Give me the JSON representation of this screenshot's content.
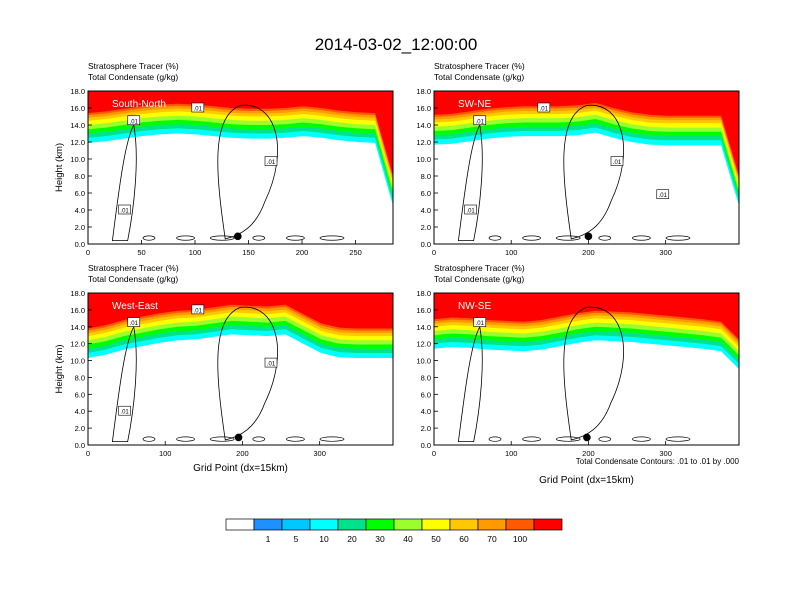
{
  "title": "2014-03-02_12:00:00",
  "colorbar": {
    "colors": [
      "#ffffff",
      "#1e90ff",
      "#00c8ff",
      "#00ffff",
      "#00e38c",
      "#00ff00",
      "#9bff2d",
      "#ffff00",
      "#ffc800",
      "#ff9b00",
      "#ff5a00",
      "#ff0000"
    ],
    "labels": [
      "1",
      "5",
      "10",
      "20",
      "30",
      "40",
      "50",
      "60",
      "70",
      "100"
    ]
  },
  "contour_note": "Total Condensate Contours: .01 to .01 by .000",
  "chart_data": [
    {
      "type": "heatmap",
      "panel_label": "South-North",
      "header1": "Stratosphere Tracer   (%)",
      "header2": "Total Condensate   (g/kg)",
      "ylabel": "Height (km)",
      "xlabel": "",
      "xlim": [
        0,
        285
      ],
      "ylim": [
        0,
        18
      ],
      "x_ticks": [
        "0",
        "50",
        "100",
        "150",
        "200",
        "250"
      ],
      "y_ticks": [
        "0.0",
        "2.0",
        "4.0",
        "6.0",
        "8.0",
        "10.0",
        "12.0",
        "14.0",
        "16.0",
        "18.0"
      ],
      "contour_labels": [
        ".01",
        ".01",
        ".01",
        ".01"
      ],
      "tropopause_km": [
        15.4,
        15.6,
        15.9,
        16.2,
        16.4,
        16.5,
        16.4,
        16.2,
        16.0,
        15.9,
        15.9,
        16.0,
        16.2,
        16.0,
        15.7,
        15.5,
        15.4,
        8.0
      ],
      "marker_x": 140
    },
    {
      "type": "heatmap",
      "panel_label": "SW-NE",
      "header1": "Stratosphere Tracer   (%)",
      "header2": "Total Condensate   (g/kg)",
      "ylabel": "",
      "xlabel": "",
      "xlim": [
        0,
        395
      ],
      "ylim": [
        0,
        18
      ],
      "x_ticks": [
        "0",
        "100",
        "200",
        "300"
      ],
      "y_ticks": [
        "0.0",
        "2.0",
        "4.0",
        "6.0",
        "8.0",
        "10.0",
        "12.0",
        "14.0",
        "16.0",
        "18.0"
      ],
      "contour_labels": [
        ".01",
        ".01",
        ".01",
        ".01",
        ".01"
      ],
      "tropopause_km": [
        15.2,
        15.3,
        15.6,
        15.9,
        16.1,
        16.2,
        16.2,
        16.2,
        16.3,
        16.6,
        16.0,
        15.5,
        15.2,
        15.1,
        15.1,
        15.1,
        15.1,
        8.0
      ],
      "marker_x": 200
    },
    {
      "type": "heatmap",
      "panel_label": "West-East",
      "header1": "Stratosphere Tracer   (%)",
      "header2": "Total Condensate   (g/kg)",
      "ylabel": "Height (km)",
      "xlabel": "Grid Point (dx=15km)",
      "xlim": [
        0,
        395
      ],
      "ylim": [
        0,
        18
      ],
      "x_ticks": [
        "0",
        "100",
        "200",
        "300"
      ],
      "y_ticks": [
        "0.0",
        "2.0",
        "4.0",
        "6.0",
        "8.0",
        "10.0",
        "12.0",
        "14.0",
        "16.0",
        "18.0"
      ],
      "contour_labels": [
        ".01",
        ".01",
        ".01",
        ".01"
      ],
      "tropopause_km": [
        13.8,
        14.2,
        14.8,
        15.2,
        15.6,
        15.9,
        16.0,
        16.3,
        16.6,
        16.5,
        16.4,
        16.6,
        15.5,
        14.4,
        13.9,
        13.8,
        13.8,
        13.8
      ],
      "marker_x": 195
    },
    {
      "type": "heatmap",
      "panel_label": "NW-SE",
      "header1": "Stratosphere Tracer   (%)",
      "header2": "Total Condensate   (g/kg)",
      "ylabel": "",
      "xlabel": "Grid Point (dx=15km)",
      "xlim": [
        0,
        395
      ],
      "ylim": [
        0,
        18
      ],
      "x_ticks": [
        "0",
        "100",
        "200",
        "300"
      ],
      "y_ticks": [
        "0.0",
        "2.0",
        "4.0",
        "6.0",
        "8.0",
        "10.0",
        "12.0",
        "14.0",
        "16.0",
        "18.0"
      ],
      "contour_labels": [
        ".01"
      ],
      "tropopause_km": [
        14.9,
        15.1,
        15.0,
        14.8,
        14.7,
        14.6,
        14.8,
        15.2,
        15.6,
        15.9,
        15.8,
        15.7,
        15.5,
        15.3,
        15.1,
        14.9,
        14.6,
        12.5
      ],
      "marker_x": 198
    }
  ]
}
